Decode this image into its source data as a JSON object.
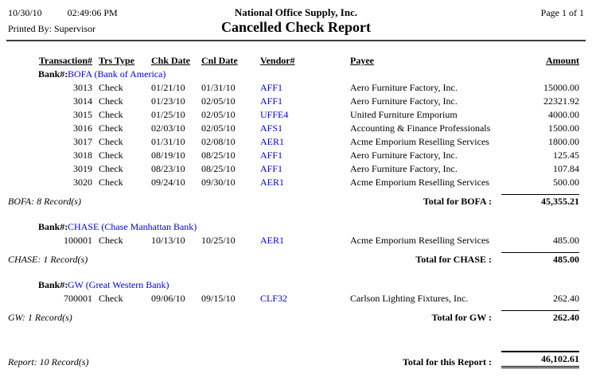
{
  "page": {
    "date": "10/30/10",
    "time": "02:49:06 PM",
    "printed_by": "Printed By: Supervisor",
    "company": "National Office Supply, Inc.",
    "title": "Cancelled Check Report",
    "page_info": "Page 1 of 1"
  },
  "table": {
    "bank_label": "Bank#:",
    "columns": {
      "transaction": "Transaction#",
      "trs_type": "Trs Type",
      "chk_date": "Chk Date",
      "cnl_date": "Cnl Date",
      "vendor": "Vendor#",
      "payee": "Payee",
      "amount": "Amount"
    }
  },
  "sections": [
    {
      "bank": "BOFA (Bank of America)",
      "rows": [
        {
          "txn": "3013",
          "type": "Check",
          "chk": "01/21/10",
          "cnl": "01/31/10",
          "vendor": "AFF1",
          "payee": "Aero Furniture Factory, Inc.",
          "amount": "15000.00"
        },
        {
          "txn": "3014",
          "type": "Check",
          "chk": "01/23/10",
          "cnl": "02/05/10",
          "vendor": "AFF1",
          "payee": "Aero Furniture Factory, Inc.",
          "amount": "22321.92"
        },
        {
          "txn": "3015",
          "type": "Check",
          "chk": "01/25/10",
          "cnl": "02/05/10",
          "vendor": "UFFE4",
          "payee": "United Furniture Emporium",
          "amount": "4000.00"
        },
        {
          "txn": "3016",
          "type": "Check",
          "chk": "02/03/10",
          "cnl": "02/05/10",
          "vendor": "AFS1",
          "payee": "Accounting & Finance Professionals",
          "amount": "1500.00"
        },
        {
          "txn": "3017",
          "type": "Check",
          "chk": "01/31/10",
          "cnl": "02/08/10",
          "vendor": "AER1",
          "payee": "Acme Emporium Reselling Services",
          "amount": "1800.00"
        },
        {
          "txn": "3018",
          "type": "Check",
          "chk": "08/19/10",
          "cnl": "08/25/10",
          "vendor": "AFF1",
          "payee": "Aero Furniture Factory, Inc.",
          "amount": "125.45"
        },
        {
          "txn": "3019",
          "type": "Check",
          "chk": "08/23/10",
          "cnl": "08/25/10",
          "vendor": "AFF1",
          "payee": "Aero Furniture Factory, Inc.",
          "amount": "107.84"
        },
        {
          "txn": "3020",
          "type": "Check",
          "chk": "09/24/10",
          "cnl": "09/30/10",
          "vendor": "AER1",
          "payee": "Acme Emporium Reselling Services",
          "amount": "500.00"
        }
      ],
      "record_count": "BOFA: 8 Record(s)",
      "total_label": "Total for BOFA :",
      "total": "45,355.21"
    },
    {
      "bank": "CHASE (Chase Manhattan Bank)",
      "rows": [
        {
          "txn": "100001",
          "type": "Check",
          "chk": "10/13/10",
          "cnl": "10/25/10",
          "vendor": "AER1",
          "payee": "Acme Emporium Reselling Services",
          "amount": "485.00"
        }
      ],
      "record_count": "CHASE: 1 Record(s)",
      "total_label": "Total for CHASE :",
      "total": "485.00"
    },
    {
      "bank": "GW (Great Western Bank)",
      "rows": [
        {
          "txn": "700001",
          "type": "Check",
          "chk": "09/06/10",
          "cnl": "09/15/10",
          "vendor": "CLF32",
          "payee": "Carlson Lighting Fixtures, Inc.",
          "amount": "262.40"
        }
      ],
      "record_count": "GW: 1 Record(s)",
      "total_label": "Total for GW :",
      "total": "262.40"
    }
  ],
  "report_total": {
    "record_count": "Report: 10 Record(s)",
    "label": "Total for this Report :",
    "amount": "46,102.61"
  },
  "colors": {
    "link_blue": "#0000EE",
    "text": "#000000",
    "rule": "#3C3C3C"
  }
}
